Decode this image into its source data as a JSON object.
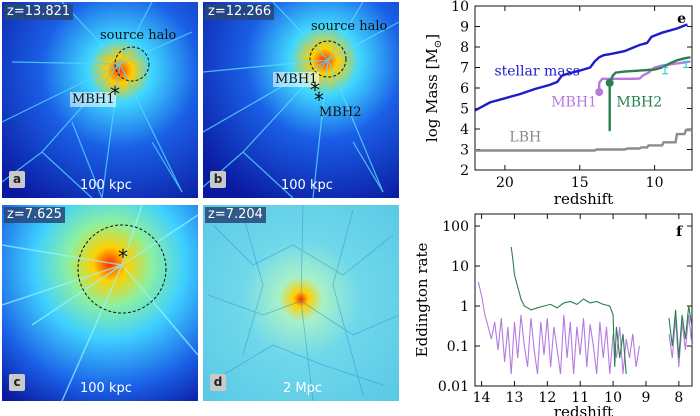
{
  "panels": {
    "a": {
      "z": "z=13.821",
      "letter": "a",
      "scale": "100 kpc",
      "halo": "source halo",
      "mbh1": "MBH1"
    },
    "b": {
      "z": "z=12.266",
      "letter": "b",
      "scale": "100 kpc",
      "halo": "source halo",
      "mbh1": "MBH1",
      "mbh2": "MBH2"
    },
    "c": {
      "z": "z=7.625",
      "letter": "c",
      "scale": "100 kpc"
    },
    "d": {
      "z": "z=7.204",
      "letter": "d",
      "scale": "2 Mpc"
    }
  },
  "chart_data": [
    {
      "type": "line",
      "panel_letter": "e",
      "xlabel": "redshift",
      "ylabel": "log Mass [M",
      "ylabel_sub": "⊙",
      "ylabel_end": "]",
      "xlim": [
        22,
        7.5
      ],
      "ylim": [
        2,
        10
      ],
      "xticks": [
        20,
        15,
        10
      ],
      "yticks": [
        2,
        3,
        4,
        5,
        6,
        7,
        8,
        9,
        10
      ],
      "annotations": {
        "stellar": "stellar mass",
        "mbh1": "MBH1",
        "mbh2": "MBH2",
        "lbh": "LBH"
      },
      "series": [
        {
          "name": "stellar mass",
          "color": "#1c1cc8",
          "points": [
            [
              22,
              4.9
            ],
            [
              21,
              5.3
            ],
            [
              20,
              5.5
            ],
            [
              19,
              5.7
            ],
            [
              18,
              5.95
            ],
            [
              17,
              6.15
            ],
            [
              16.5,
              6.3
            ],
            [
              16.2,
              6.6
            ],
            [
              15.8,
              6.7
            ],
            [
              15,
              6.85
            ],
            [
              14.3,
              7.0
            ],
            [
              14,
              7.3
            ],
            [
              13.7,
              7.5
            ],
            [
              13.4,
              7.6
            ],
            [
              13,
              7.65
            ],
            [
              12.5,
              7.72
            ],
            [
              12,
              7.8
            ],
            [
              11,
              8.1
            ],
            [
              10.5,
              8.2
            ],
            [
              10.2,
              8.5
            ],
            [
              9.5,
              8.7
            ],
            [
              8.5,
              8.9
            ],
            [
              8,
              9.05
            ],
            [
              7.8,
              9.1
            ]
          ]
        },
        {
          "name": "MBH1",
          "color": "#b57be0",
          "points": [
            [
              13.7,
              5.8
            ],
            [
              13.7,
              6.25
            ],
            [
              13.5,
              6.45
            ],
            [
              12.5,
              6.45
            ],
            [
              11.5,
              6.45
            ],
            [
              11,
              6.46
            ],
            [
              10.8,
              6.6
            ],
            [
              10.4,
              6.75
            ],
            [
              10,
              7.0
            ],
            [
              9.5,
              7.1
            ],
            [
              9,
              7.15
            ],
            [
              8.5,
              7.2
            ],
            [
              8,
              7.25
            ],
            [
              7.6,
              7.3
            ]
          ]
        },
        {
          "name": "MBH2",
          "color": "#2a7f4f",
          "points": [
            [
              13.0,
              5.3
            ],
            [
              13.0,
              3.9
            ],
            [
              13.0,
              5.3
            ],
            [
              13.0,
              6.2
            ],
            [
              12.8,
              6.6
            ],
            [
              12.6,
              6.75
            ],
            [
              12,
              6.8
            ],
            [
              11,
              6.85
            ],
            [
              10,
              6.9
            ],
            [
              9.5,
              7.0
            ],
            [
              9,
              7.2
            ],
            [
              8.5,
              7.35
            ],
            [
              8,
              7.45
            ],
            [
              7.6,
              7.5
            ]
          ]
        },
        {
          "name": "LBH",
          "color": "#8c8c8c",
          "points": [
            [
              22,
              2.95
            ],
            [
              14,
              2.95
            ],
            [
              13.9,
              3.0
            ],
            [
              12,
              3.0
            ],
            [
              11.8,
              3.05
            ],
            [
              11,
              3.05
            ],
            [
              10.9,
              3.1
            ],
            [
              10.5,
              3.1
            ],
            [
              10.4,
              3.2
            ],
            [
              9.5,
              3.2
            ],
            [
              9.4,
              3.35
            ],
            [
              8.6,
              3.35
            ],
            [
              8.5,
              3.75
            ],
            [
              8,
              3.75
            ],
            [
              7.9,
              3.95
            ],
            [
              7.5,
              3.95
            ]
          ]
        }
      ],
      "markers": [
        {
          "series": "MBH1",
          "x": 13.7,
          "y": 5.8
        },
        {
          "series": "MBH2",
          "x": 13.0,
          "y": 6.25
        }
      ],
      "errorbars": [
        {
          "x": 9.3,
          "y": 6.85,
          "low": 6.7,
          "high": 7.0,
          "color": "#3ad0d0"
        },
        {
          "x": 7.9,
          "y": 7.15,
          "low": 7.0,
          "high": 7.3,
          "color": "#3ad0d0"
        }
      ]
    },
    {
      "type": "line",
      "panel_letter": "f",
      "xlabel": "redshift",
      "ylabel": "Eddington rate",
      "yscale": "log",
      "xlim": [
        14.2,
        7.6
      ],
      "ylim": [
        0.01,
        200
      ],
      "xticks": [
        14,
        13,
        12,
        11,
        10,
        9,
        8
      ],
      "yticks": [
        0.01,
        0.1,
        1,
        10,
        100
      ],
      "ytick_labels": [
        "0.01",
        "0.1",
        "1",
        "10",
        "100"
      ],
      "series": [
        {
          "name": "MBH1",
          "color": "#b57be0",
          "points": [
            [
              14.1,
              4
            ],
            [
              14.0,
              1.8
            ],
            [
              13.9,
              0.6
            ],
            [
              13.8,
              0.3
            ],
            [
              13.7,
              0.15
            ],
            [
              13.6,
              0.4
            ],
            [
              13.5,
              0.08
            ],
            [
              13.4,
              0.5
            ],
            [
              13.3,
              0.04
            ],
            [
              13.2,
              0.3
            ],
            [
              13.1,
              0.02
            ],
            [
              13.0,
              0.4
            ],
            [
              12.9,
              0.05
            ],
            [
              12.8,
              0.6
            ],
            [
              12.7,
              0.1
            ],
            [
              12.6,
              0.03
            ],
            [
              12.5,
              0.5
            ],
            [
              12.4,
              0.08
            ],
            [
              12.3,
              0.02
            ],
            [
              12.2,
              0.4
            ],
            [
              12.1,
              0.06
            ],
            [
              12.0,
              0.5
            ],
            [
              11.9,
              0.03
            ],
            [
              11.8,
              0.3
            ],
            [
              11.7,
              0.08
            ],
            [
              11.6,
              0.02
            ],
            [
              11.5,
              0.6
            ],
            [
              11.4,
              0.05
            ],
            [
              11.3,
              0.4
            ],
            [
              11.2,
              0.02
            ],
            [
              11.1,
              0.3
            ],
            [
              11.0,
              0.06
            ],
            [
              10.9,
              0.5
            ],
            [
              10.8,
              0.03
            ],
            [
              10.7,
              0.35
            ],
            [
              10.6,
              0.1
            ],
            [
              10.5,
              0.02
            ],
            [
              10.4,
              0.4
            ],
            [
              10.3,
              0.05
            ],
            [
              10.2,
              0.3
            ],
            [
              10.1,
              0.02
            ],
            [
              10.0,
              0.2
            ],
            [
              9.9,
              0.05
            ],
            [
              9.8,
              0.3
            ],
            [
              9.7,
              0.02
            ],
            [
              9.6,
              0.15
            ],
            [
              9.5,
              0.05
            ],
            [
              9.4,
              0.2
            ],
            [
              9.3,
              0.03
            ],
            [
              9.2,
              0.1
            ]
          ]
        },
        {
          "name": "MBH1 late",
          "color": "#b57be0",
          "points": [
            [
              8.3,
              0.2
            ],
            [
              8.2,
              0.05
            ],
            [
              8.1,
              0.5
            ],
            [
              8.0,
              0.03
            ],
            [
              7.9,
              0.4
            ],
            [
              7.8,
              0.08
            ],
            [
              7.7,
              0.6
            ],
            [
              7.6,
              0.1
            ]
          ]
        },
        {
          "name": "MBH2",
          "color": "#2a7f4f",
          "points": [
            [
              13.1,
              30
            ],
            [
              13.05,
              15
            ],
            [
              13.0,
              6
            ],
            [
              12.9,
              3
            ],
            [
              12.8,
              1.5
            ],
            [
              12.7,
              1.0
            ],
            [
              12.6,
              0.9
            ],
            [
              12.5,
              0.8
            ],
            [
              12.3,
              0.9
            ],
            [
              12.1,
              1.0
            ],
            [
              11.9,
              1.1
            ],
            [
              11.7,
              0.9
            ],
            [
              11.5,
              1.2
            ],
            [
              11.3,
              1.3
            ],
            [
              11.1,
              1.1
            ],
            [
              10.9,
              1.5
            ],
            [
              10.7,
              1.2
            ],
            [
              10.5,
              1.3
            ],
            [
              10.3,
              1.1
            ],
            [
              10.1,
              1.0
            ],
            [
              10.0,
              0.6
            ],
            [
              9.95,
              0.03
            ],
            [
              9.9,
              0.3
            ],
            [
              9.8,
              0.05
            ],
            [
              9.7,
              0.2
            ],
            [
              9.6,
              0.02
            ]
          ]
        },
        {
          "name": "MBH2 late",
          "color": "#2a7f4f",
          "points": [
            [
              8.3,
              0.5
            ],
            [
              8.2,
              0.1
            ],
            [
              8.1,
              0.8
            ],
            [
              8.0,
              0.05
            ],
            [
              7.9,
              0.6
            ],
            [
              7.8,
              0.15
            ],
            [
              7.7,
              1.0
            ],
            [
              7.6,
              0.3
            ]
          ]
        }
      ]
    }
  ]
}
